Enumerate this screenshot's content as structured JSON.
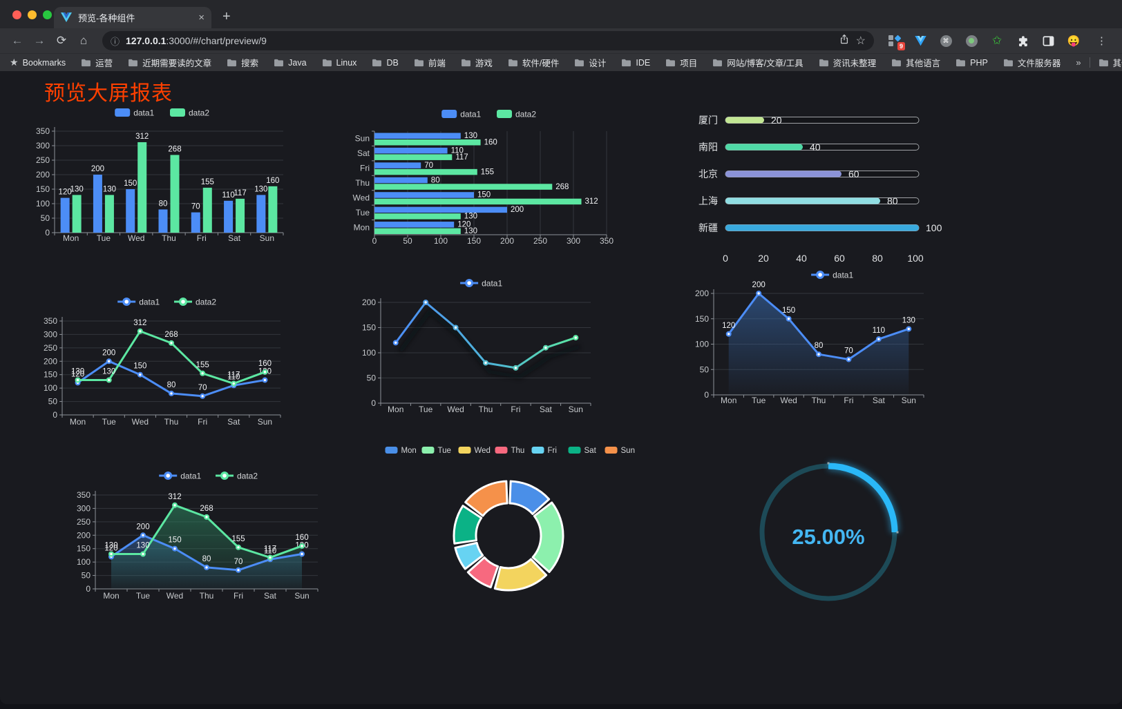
{
  "window": {
    "tab_title": "预览-各种组件",
    "new_tab_label": "+",
    "tab_close_label": "×",
    "url_host": "127.0.0.1",
    "url_path": ":3000/#/chart/preview/9",
    "ext_badge": "9",
    "emoji_icon": "😛"
  },
  "bookmarks": {
    "bar_label": "Bookmarks",
    "items": [
      "运营",
      "近期需要读的文章",
      "搜索",
      "Java",
      "Linux",
      "DB",
      "前端",
      "游戏",
      "软件/硬件",
      "设计",
      "IDE",
      "项目",
      "网站/博客/文章/工具",
      "资讯未整理",
      "其他语言",
      "PHP",
      "文件服务器"
    ],
    "overflow": "»",
    "other_bookmarks": "其他书签"
  },
  "page": {
    "title": "预览大屏报表",
    "title_color": "#ff4000"
  },
  "chart_data": [
    {
      "id": "bar-vertical",
      "type": "bar",
      "legend": [
        "data1",
        "data2"
      ],
      "categories": [
        "Mon",
        "Tue",
        "Wed",
        "Thu",
        "Fri",
        "Sat",
        "Sun"
      ],
      "series": [
        {
          "name": "data1",
          "color": "#4C8DF6",
          "values": [
            120,
            200,
            150,
            80,
            70,
            110,
            130
          ]
        },
        {
          "name": "data2",
          "color": "#5CE7A2",
          "values": [
            130,
            130,
            312,
            268,
            155,
            117,
            160
          ]
        }
      ],
      "ylim": [
        0,
        350
      ],
      "yticks": [
        0,
        50,
        100,
        150,
        200,
        250,
        300,
        350
      ],
      "value_labels": true
    },
    {
      "id": "bar-horizontal",
      "type": "hbar",
      "legend": [
        "data1",
        "data2"
      ],
      "categories": [
        "Mon",
        "Tue",
        "Wed",
        "Thu",
        "Fri",
        "Sat",
        "Sun"
      ],
      "category_display_order": "reversed",
      "series": [
        {
          "name": "data1",
          "color": "#4C8DF6",
          "values": [
            120,
            200,
            150,
            80,
            70,
            110,
            130
          ]
        },
        {
          "name": "data2",
          "color": "#5CE7A2",
          "values": [
            130,
            130,
            312,
            268,
            155,
            117,
            160
          ]
        }
      ],
      "xlim": [
        0,
        350
      ],
      "xticks": [
        0,
        50,
        100,
        150,
        200,
        250,
        300,
        350
      ],
      "value_labels": true
    },
    {
      "id": "progress-bars",
      "type": "progress",
      "items": [
        {
          "label": "厦门",
          "value": 20,
          "color": "#C2E693"
        },
        {
          "label": "南阳",
          "value": 40,
          "color": "#4FD9A6"
        },
        {
          "label": "北京",
          "value": 60,
          "color": "#8B93D8"
        },
        {
          "label": "上海",
          "value": 80,
          "color": "#8FDDE2"
        },
        {
          "label": "新疆",
          "value": 100,
          "color": "#39A9DD"
        }
      ],
      "xlim": [
        0,
        100
      ],
      "xticks": [
        0,
        20,
        40,
        60,
        80,
        100
      ]
    },
    {
      "id": "line-dual",
      "type": "line",
      "legend": [
        "data1",
        "data2"
      ],
      "categories": [
        "Mon",
        "Tue",
        "Wed",
        "Thu",
        "Fri",
        "Sat",
        "Sun"
      ],
      "series": [
        {
          "name": "data1",
          "color": "#4C8DF6",
          "values": [
            120,
            200,
            150,
            80,
            70,
            110,
            130
          ]
        },
        {
          "name": "data2",
          "color": "#5CE7A2",
          "values": [
            130,
            130,
            312,
            268,
            155,
            117,
            160
          ]
        }
      ],
      "ylim": [
        0,
        350
      ],
      "yticks": [
        0,
        50,
        100,
        150,
        200,
        250,
        300,
        350
      ],
      "value_labels": true
    },
    {
      "id": "line-gradient",
      "type": "line",
      "legend": [
        "data1"
      ],
      "categories": [
        "Mon",
        "Tue",
        "Wed",
        "Thu",
        "Fri",
        "Sat",
        "Sun"
      ],
      "series": [
        {
          "name": "data1",
          "gradient": [
            "#4C8DF6",
            "#5CE7A2"
          ],
          "values": [
            120,
            200,
            150,
            80,
            70,
            110,
            130
          ]
        }
      ],
      "ylim": [
        0,
        200
      ],
      "yticks": [
        0,
        50,
        100,
        150,
        200
      ],
      "value_labels": false,
      "shadow": true
    },
    {
      "id": "area-single",
      "type": "line",
      "legend": [
        "data1"
      ],
      "categories": [
        "Mon",
        "Tue",
        "Wed",
        "Thu",
        "Fri",
        "Sat",
        "Sun"
      ],
      "series": [
        {
          "name": "data1",
          "color": "#4C8DF6",
          "values": [
            120,
            200,
            150,
            80,
            70,
            110,
            130
          ],
          "area": [
            "rgba(58,110,180,0.55)",
            "rgba(58,110,180,0.03)"
          ]
        }
      ],
      "ylim": [
        0,
        200
      ],
      "yticks": [
        0,
        50,
        100,
        150,
        200
      ],
      "value_labels": true
    },
    {
      "id": "area-dual",
      "type": "line",
      "legend": [
        "data1",
        "data2"
      ],
      "categories": [
        "Mon",
        "Tue",
        "Wed",
        "Thu",
        "Fri",
        "Sat",
        "Sun"
      ],
      "series": [
        {
          "name": "data1",
          "color": "#4C8DF6",
          "values": [
            120,
            200,
            150,
            80,
            70,
            110,
            130
          ],
          "area": [
            "rgba(58,110,180,0.50)",
            "rgba(58,110,180,0.04)"
          ]
        },
        {
          "name": "data2",
          "color": "#5CE7A2",
          "values": [
            130,
            130,
            312,
            268,
            155,
            117,
            160
          ],
          "area": [
            "rgba(46,140,100,0.55)",
            "rgba(46,140,100,0.05)"
          ]
        }
      ],
      "ylim": [
        0,
        350
      ],
      "yticks": [
        0,
        50,
        100,
        150,
        200,
        250,
        300,
        350
      ],
      "value_labels": true
    },
    {
      "id": "pie-donut",
      "type": "pie",
      "items": [
        {
          "label": "Mon",
          "value": 120,
          "color": "#4A8FE8"
        },
        {
          "label": "Tue",
          "value": 200,
          "color": "#8CF0AD"
        },
        {
          "label": "Wed",
          "value": 150,
          "color": "#F3D45E"
        },
        {
          "label": "Thu",
          "value": 80,
          "color": "#F7697F"
        },
        {
          "label": "Fri",
          "value": 70,
          "color": "#67D3F2"
        },
        {
          "label": "Sat",
          "value": 110,
          "color": "#0BB286"
        },
        {
          "label": "Sun",
          "value": 130,
          "color": "#F5914A"
        }
      ]
    },
    {
      "id": "gauge",
      "type": "gauge",
      "percent": 25,
      "label": "25.00%",
      "color": "#2AB8F8",
      "track_color": "#1D4A57",
      "text_color": "#44B7F3"
    }
  ]
}
